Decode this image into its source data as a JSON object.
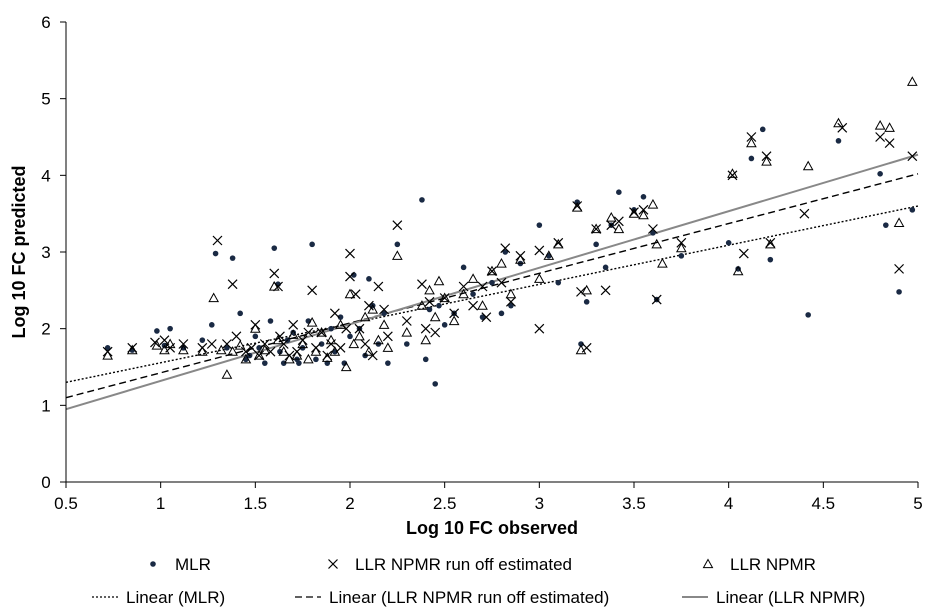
{
  "chart_data": {
    "type": "scatter",
    "xlabel": "Log 10 FC observed",
    "ylabel": "Log 10 FC predicted",
    "xlim": [
      0.5,
      5
    ],
    "ylim": [
      0,
      6
    ],
    "x_ticks": [
      "0.5",
      "1",
      "1.5",
      "2",
      "2.5",
      "3",
      "3.5",
      "4",
      "4.5",
      "5"
    ],
    "y_ticks": [
      "0",
      "1",
      "2",
      "3",
      "4",
      "5",
      "6"
    ],
    "grid": false,
    "legend_position": "bottom",
    "series": [
      {
        "name": "MLR",
        "marker": "dot",
        "color": "#1a2a44",
        "points": [
          [
            0.72,
            1.75
          ],
          [
            0.85,
            1.72
          ],
          [
            0.98,
            1.97
          ],
          [
            1.02,
            1.78
          ],
          [
            1.05,
            2.0
          ],
          [
            1.12,
            1.75
          ],
          [
            1.22,
            1.85
          ],
          [
            1.27,
            2.05
          ],
          [
            1.29,
            2.98
          ],
          [
            1.38,
            2.92
          ],
          [
            1.35,
            1.75
          ],
          [
            1.42,
            2.2
          ],
          [
            1.45,
            1.6
          ],
          [
            1.47,
            1.65
          ],
          [
            1.5,
            1.9
          ],
          [
            1.52,
            1.75
          ],
          [
            1.55,
            1.55
          ],
          [
            1.58,
            2.1
          ],
          [
            1.6,
            3.05
          ],
          [
            1.62,
            2.58
          ],
          [
            1.63,
            1.7
          ],
          [
            1.65,
            1.55
          ],
          [
            1.67,
            1.85
          ],
          [
            1.7,
            1.95
          ],
          [
            1.72,
            1.6
          ],
          [
            1.73,
            1.55
          ],
          [
            1.75,
            1.75
          ],
          [
            1.78,
            2.1
          ],
          [
            1.8,
            3.1
          ],
          [
            1.82,
            1.6
          ],
          [
            1.85,
            1.8
          ],
          [
            1.88,
            1.55
          ],
          [
            1.9,
            2.0
          ],
          [
            1.92,
            1.7
          ],
          [
            1.95,
            2.15
          ],
          [
            1.97,
            1.55
          ],
          [
            2.0,
            1.9
          ],
          [
            2.02,
            2.7
          ],
          [
            2.05,
            2.0
          ],
          [
            2.08,
            1.65
          ],
          [
            2.1,
            2.65
          ],
          [
            2.12,
            2.3
          ],
          [
            2.15,
            1.8
          ],
          [
            2.18,
            2.2
          ],
          [
            2.2,
            1.55
          ],
          [
            2.25,
            3.1
          ],
          [
            2.3,
            1.8
          ],
          [
            2.38,
            3.68
          ],
          [
            2.4,
            1.6
          ],
          [
            2.42,
            2.25
          ],
          [
            2.45,
            1.28
          ],
          [
            2.47,
            2.3
          ],
          [
            2.5,
            2.05
          ],
          [
            2.55,
            2.2
          ],
          [
            2.6,
            2.8
          ],
          [
            2.65,
            2.45
          ],
          [
            2.7,
            2.15
          ],
          [
            2.75,
            2.6
          ],
          [
            2.8,
            2.2
          ],
          [
            2.82,
            3.0
          ],
          [
            2.85,
            2.3
          ],
          [
            2.9,
            2.85
          ],
          [
            3.0,
            3.35
          ],
          [
            3.05,
            2.95
          ],
          [
            3.1,
            2.6
          ],
          [
            3.2,
            3.65
          ],
          [
            3.22,
            1.8
          ],
          [
            3.25,
            2.35
          ],
          [
            3.3,
            3.1
          ],
          [
            3.35,
            2.8
          ],
          [
            3.38,
            3.35
          ],
          [
            3.42,
            3.78
          ],
          [
            3.5,
            3.55
          ],
          [
            3.55,
            3.72
          ],
          [
            3.6,
            3.25
          ],
          [
            3.62,
            2.38
          ],
          [
            3.75,
            2.95
          ],
          [
            4.0,
            3.12
          ],
          [
            4.05,
            2.78
          ],
          [
            4.12,
            4.22
          ],
          [
            4.18,
            4.6
          ],
          [
            4.22,
            2.9
          ],
          [
            4.42,
            2.18
          ],
          [
            4.58,
            4.45
          ],
          [
            4.8,
            4.02
          ],
          [
            4.83,
            3.35
          ],
          [
            4.9,
            2.48
          ],
          [
            4.97,
            3.55
          ]
        ]
      },
      {
        "name": "LLR NPMR run off estimated",
        "marker": "x",
        "color": "#000000",
        "points": [
          [
            0.72,
            1.7
          ],
          [
            0.85,
            1.75
          ],
          [
            0.97,
            1.82
          ],
          [
            1.02,
            1.85
          ],
          [
            1.05,
            1.75
          ],
          [
            1.12,
            1.8
          ],
          [
            1.22,
            1.75
          ],
          [
            1.27,
            1.8
          ],
          [
            1.3,
            3.15
          ],
          [
            1.38,
            2.58
          ],
          [
            1.35,
            1.8
          ],
          [
            1.4,
            1.9
          ],
          [
            1.45,
            1.7
          ],
          [
            1.48,
            1.75
          ],
          [
            1.5,
            2.05
          ],
          [
            1.52,
            1.65
          ],
          [
            1.55,
            1.8
          ],
          [
            1.58,
            1.7
          ],
          [
            1.6,
            2.72
          ],
          [
            1.62,
            2.55
          ],
          [
            1.63,
            1.9
          ],
          [
            1.65,
            1.8
          ],
          [
            1.68,
            1.65
          ],
          [
            1.7,
            2.05
          ],
          [
            1.72,
            1.7
          ],
          [
            1.75,
            1.85
          ],
          [
            1.78,
            1.95
          ],
          [
            1.8,
            2.5
          ],
          [
            1.82,
            1.75
          ],
          [
            1.85,
            1.95
          ],
          [
            1.88,
            1.65
          ],
          [
            1.9,
            1.8
          ],
          [
            1.92,
            2.2
          ],
          [
            1.95,
            1.75
          ],
          [
            1.98,
            2.0
          ],
          [
            2.0,
            2.98
          ],
          [
            2.0,
            2.68
          ],
          [
            2.03,
            2.45
          ],
          [
            2.05,
            2.0
          ],
          [
            2.08,
            1.8
          ],
          [
            2.1,
            2.3
          ],
          [
            2.12,
            1.65
          ],
          [
            2.15,
            2.55
          ],
          [
            2.18,
            2.25
          ],
          [
            2.2,
            1.9
          ],
          [
            2.25,
            3.35
          ],
          [
            2.3,
            2.1
          ],
          [
            2.38,
            2.58
          ],
          [
            2.4,
            2.0
          ],
          [
            2.42,
            2.35
          ],
          [
            2.45,
            1.95
          ],
          [
            2.5,
            2.4
          ],
          [
            2.55,
            2.2
          ],
          [
            2.6,
            2.55
          ],
          [
            2.65,
            2.3
          ],
          [
            2.7,
            2.55
          ],
          [
            2.72,
            2.15
          ],
          [
            2.75,
            2.75
          ],
          [
            2.8,
            2.6
          ],
          [
            2.82,
            3.05
          ],
          [
            2.85,
            2.35
          ],
          [
            2.9,
            2.95
          ],
          [
            3.0,
            3.02
          ],
          [
            3.0,
            2.0
          ],
          [
            3.1,
            3.12
          ],
          [
            3.2,
            3.6
          ],
          [
            3.22,
            2.48
          ],
          [
            3.25,
            1.75
          ],
          [
            3.3,
            3.3
          ],
          [
            3.35,
            2.5
          ],
          [
            3.38,
            3.35
          ],
          [
            3.42,
            3.4
          ],
          [
            3.5,
            3.52
          ],
          [
            3.55,
            3.55
          ],
          [
            3.6,
            3.3
          ],
          [
            3.62,
            2.38
          ],
          [
            3.75,
            3.12
          ],
          [
            4.02,
            4.0
          ],
          [
            4.08,
            2.98
          ],
          [
            4.12,
            4.5
          ],
          [
            4.2,
            4.25
          ],
          [
            4.22,
            3.12
          ],
          [
            4.4,
            3.5
          ],
          [
            4.6,
            4.62
          ],
          [
            4.8,
            4.5
          ],
          [
            4.85,
            4.42
          ],
          [
            4.9,
            2.78
          ],
          [
            4.97,
            4.25
          ]
        ]
      },
      {
        "name": "LLR NPMR",
        "marker": "triangle",
        "color": "#000000",
        "points": [
          [
            0.72,
            1.65
          ],
          [
            0.85,
            1.72
          ],
          [
            0.98,
            1.78
          ],
          [
            1.02,
            1.72
          ],
          [
            1.05,
            1.8
          ],
          [
            1.12,
            1.72
          ],
          [
            1.22,
            1.7
          ],
          [
            1.28,
            2.4
          ],
          [
            1.32,
            1.72
          ],
          [
            1.35,
            1.4
          ],
          [
            1.38,
            1.7
          ],
          [
            1.42,
            1.78
          ],
          [
            1.45,
            1.6
          ],
          [
            1.5,
            2.0
          ],
          [
            1.52,
            1.65
          ],
          [
            1.55,
            1.72
          ],
          [
            1.6,
            2.55
          ],
          [
            1.62,
            1.85
          ],
          [
            1.65,
            1.7
          ],
          [
            1.68,
            1.6
          ],
          [
            1.7,
            1.92
          ],
          [
            1.72,
            1.65
          ],
          [
            1.75,
            1.8
          ],
          [
            1.78,
            1.6
          ],
          [
            1.8,
            2.08
          ],
          [
            1.82,
            1.7
          ],
          [
            1.85,
            1.95
          ],
          [
            1.88,
            1.62
          ],
          [
            1.9,
            1.85
          ],
          [
            1.92,
            1.7
          ],
          [
            1.95,
            2.05
          ],
          [
            1.98,
            1.5
          ],
          [
            2.0,
            2.45
          ],
          [
            2.02,
            1.8
          ],
          [
            2.05,
            1.9
          ],
          [
            2.08,
            2.15
          ],
          [
            2.1,
            1.7
          ],
          [
            2.12,
            2.25
          ],
          [
            2.15,
            1.85
          ],
          [
            2.18,
            2.05
          ],
          [
            2.2,
            1.75
          ],
          [
            2.25,
            2.95
          ],
          [
            2.3,
            1.95
          ],
          [
            2.38,
            2.3
          ],
          [
            2.4,
            1.85
          ],
          [
            2.42,
            2.5
          ],
          [
            2.45,
            2.15
          ],
          [
            2.47,
            2.62
          ],
          [
            2.5,
            2.4
          ],
          [
            2.55,
            2.1
          ],
          [
            2.6,
            2.45
          ],
          [
            2.65,
            2.65
          ],
          [
            2.7,
            2.3
          ],
          [
            2.75,
            2.75
          ],
          [
            2.8,
            2.85
          ],
          [
            2.85,
            2.45
          ],
          [
            2.9,
            2.9
          ],
          [
            3.0,
            2.65
          ],
          [
            3.05,
            2.95
          ],
          [
            3.1,
            3.1
          ],
          [
            3.2,
            3.58
          ],
          [
            3.22,
            1.72
          ],
          [
            3.25,
            2.5
          ],
          [
            3.3,
            3.3
          ],
          [
            3.38,
            3.45
          ],
          [
            3.42,
            3.3
          ],
          [
            3.5,
            3.5
          ],
          [
            3.55,
            3.48
          ],
          [
            3.6,
            3.62
          ],
          [
            3.62,
            3.1
          ],
          [
            3.65,
            2.85
          ],
          [
            3.75,
            3.05
          ],
          [
            4.02,
            4.02
          ],
          [
            4.05,
            2.75
          ],
          [
            4.12,
            4.42
          ],
          [
            4.2,
            4.18
          ],
          [
            4.22,
            3.1
          ],
          [
            4.42,
            4.12
          ],
          [
            4.58,
            4.68
          ],
          [
            4.8,
            4.65
          ],
          [
            4.85,
            4.62
          ],
          [
            4.9,
            3.38
          ],
          [
            4.97,
            5.22
          ]
        ]
      }
    ],
    "trendlines": [
      {
        "name": "Linear (MLR)",
        "style": "dotted",
        "color": "#000000",
        "x": [
          0.5,
          5
        ],
        "y": [
          1.3,
          3.6
        ]
      },
      {
        "name": "Linear (LLR NPMR run off estimated)",
        "style": "dashed",
        "color": "#000000",
        "x": [
          0.5,
          5
        ],
        "y": [
          1.1,
          4.02
        ]
      },
      {
        "name": "Linear (LLR NPMR)",
        "style": "solid",
        "color": "#888888",
        "x": [
          0.5,
          5
        ],
        "y": [
          0.95,
          4.27
        ]
      }
    ]
  }
}
